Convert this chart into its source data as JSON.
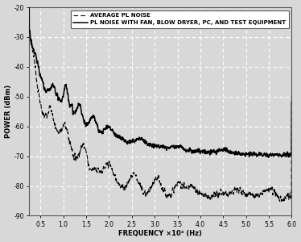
{
  "xlabel": "FREQUENCY ×10² (Hz)",
  "ylabel": "POWER (dBm)",
  "xlim": [
    0.25,
    6.0
  ],
  "ylim": [
    -90,
    -20
  ],
  "yticks": [
    -90,
    -80,
    -70,
    -60,
    -50,
    -40,
    -30,
    -20
  ],
  "xticks": [
    0.5,
    1.0,
    1.5,
    2.0,
    2.5,
    3.0,
    3.5,
    4.0,
    4.5,
    5.0,
    5.5,
    6.0
  ],
  "xtick_labels": [
    "0.5",
    "1.0",
    "1.5",
    "2.0",
    "2.5",
    "3.0",
    "3.5",
    "4.0",
    "4.5",
    "5.0",
    "5.5",
    "6.0"
  ],
  "ytick_labels": [
    "-90",
    "-80",
    "-70",
    "-60",
    "-50",
    "-40",
    "-30",
    "-20"
  ],
  "legend1": "AVERAGE PL NOISE",
  "legend2": "PL NOISE WITH FAN, BLOW DRYER, PC, AND TEST EQUIPMENT",
  "background_color": "#d8d8d8",
  "plot_bg_color": "#d8d8d8",
  "line_color": "#000000",
  "grid_color": "#ffffff"
}
